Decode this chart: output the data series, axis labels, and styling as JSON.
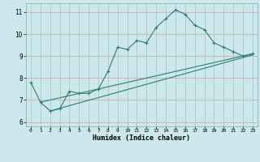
{
  "xlabel": "Humidex (Indice chaleur)",
  "bg_color": "#cce8ec",
  "grid_color_h": "#d4a8a8",
  "grid_color_v": "#a8c8cc",
  "line_color": "#2e7d70",
  "xlim": [
    -0.5,
    23.5
  ],
  "ylim": [
    5.8,
    11.4
  ],
  "yticks": [
    6,
    7,
    8,
    9,
    10,
    11
  ],
  "xticks": [
    0,
    1,
    2,
    3,
    4,
    5,
    6,
    7,
    8,
    9,
    10,
    11,
    12,
    13,
    14,
    15,
    16,
    17,
    18,
    19,
    20,
    21,
    22,
    23
  ],
  "line1_x": [
    0,
    1,
    2,
    3,
    4,
    5,
    6,
    7,
    8,
    9,
    10,
    11,
    12,
    13,
    14,
    15,
    16,
    17,
    18,
    19,
    20,
    21,
    22,
    23
  ],
  "line1_y": [
    7.8,
    6.9,
    6.5,
    6.6,
    7.4,
    7.3,
    7.3,
    7.5,
    8.3,
    9.4,
    9.3,
    9.7,
    9.6,
    10.3,
    10.7,
    11.1,
    10.9,
    10.4,
    10.2,
    9.6,
    9.4,
    9.2,
    9.0,
    9.1
  ],
  "line2_x": [
    1,
    23
  ],
  "line2_y": [
    6.9,
    9.1
  ],
  "line3_x": [
    2,
    23
  ],
  "line3_y": [
    6.5,
    9.05
  ]
}
